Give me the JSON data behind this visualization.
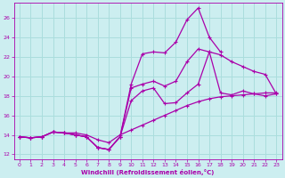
{
  "bg_color": "#cceef0",
  "line_color": "#aa00aa",
  "grid_color": "#aadddd",
  "xlabel": "Windchill (Refroidissement éolien,°C)",
  "xlim": [
    -0.5,
    23.5
  ],
  "ylim": [
    11.5,
    27.5
  ],
  "yticks": [
    12,
    14,
    16,
    18,
    20,
    22,
    24,
    26
  ],
  "xticks": [
    0,
    1,
    2,
    3,
    4,
    5,
    6,
    7,
    8,
    9,
    10,
    11,
    12,
    13,
    14,
    15,
    16,
    17,
    18,
    19,
    20,
    21,
    22,
    23
  ],
  "series": [
    {
      "x": [
        0,
        1,
        2,
        3,
        4,
        5,
        6,
        7,
        8,
        9,
        10,
        11,
        12,
        13,
        14,
        15,
        16,
        17,
        18,
        19,
        20,
        21,
        22,
        23
      ],
      "y": [
        13.8,
        13.7,
        13.8,
        14.3,
        14.2,
        14.0,
        13.8,
        12.7,
        12.5,
        13.8,
        19.2,
        22.3,
        22.5,
        22.4,
        23.5,
        25.8,
        27.0,
        24.0,
        22.5,
        null,
        null,
        null,
        null,
        null
      ]
    },
    {
      "x": [
        0,
        1,
        2,
        3,
        4,
        5,
        6,
        7,
        8,
        9,
        10,
        11,
        12,
        13,
        14,
        15,
        16,
        17,
        18,
        19,
        20,
        21,
        22,
        23
      ],
      "y": [
        13.8,
        13.7,
        13.8,
        14.3,
        14.2,
        14.0,
        13.8,
        12.7,
        12.5,
        13.8,
        18.8,
        19.2,
        19.5,
        19.0,
        19.5,
        21.5,
        22.8,
        22.5,
        22.2,
        21.5,
        21.0,
        20.5,
        20.2,
        18.2
      ]
    },
    {
      "x": [
        0,
        1,
        2,
        3,
        4,
        5,
        6,
        7,
        8,
        9,
        10,
        11,
        12,
        13,
        14,
        15,
        16,
        17,
        18,
        19,
        20,
        21,
        22,
        23
      ],
      "y": [
        13.8,
        13.7,
        13.8,
        14.3,
        14.2,
        14.0,
        13.8,
        12.7,
        12.5,
        13.8,
        17.5,
        18.5,
        18.8,
        17.2,
        17.3,
        18.3,
        19.2,
        22.5,
        18.3,
        18.1,
        18.5,
        18.2,
        18.0,
        18.2
      ]
    },
    {
      "x": [
        0,
        1,
        2,
        3,
        4,
        5,
        6,
        7,
        8,
        9,
        10,
        11,
        12,
        13,
        14,
        15,
        16,
        17,
        18,
        19,
        20,
        21,
        22,
        23
      ],
      "y": [
        13.8,
        13.7,
        13.8,
        14.3,
        14.2,
        14.2,
        14.0,
        13.5,
        13.2,
        14.0,
        14.5,
        15.0,
        15.5,
        16.0,
        16.5,
        17.0,
        17.4,
        17.7,
        17.9,
        18.0,
        18.1,
        18.2,
        18.3,
        18.3
      ]
    }
  ]
}
